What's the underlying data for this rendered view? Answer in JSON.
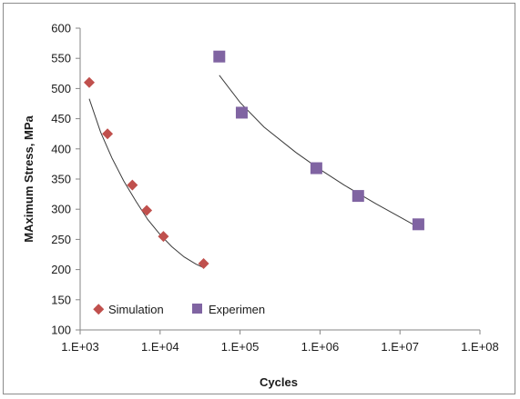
{
  "chart_data": {
    "type": "scatter",
    "xlabel": "Cycles",
    "ylabel": "MAximum Stress, MPa",
    "x_scale": "log",
    "xlim": [
      1000,
      100000000
    ],
    "ylim": [
      100,
      600
    ],
    "x_ticks": [
      1000,
      10000,
      100000,
      1000000,
      10000000,
      100000000
    ],
    "x_tick_labels": [
      "1.E+03",
      "1.E+04",
      "1.E+05",
      "1.E+06",
      "1.E+07",
      "1.E+08"
    ],
    "y_ticks": [
      100,
      150,
      200,
      250,
      300,
      350,
      400,
      450,
      500,
      550,
      600
    ],
    "y_tick_labels": [
      "100",
      "150",
      "200",
      "250",
      "300",
      "350",
      "400",
      "450",
      "500",
      "550",
      "600"
    ],
    "grid": false,
    "legend_position": "bottom-left",
    "series": [
      {
        "name": "Simulation",
        "marker": "diamond",
        "color": "#c0504d",
        "x": [
          1300,
          2200,
          4500,
          6800,
          11000,
          35000
        ],
        "y": [
          510,
          425,
          340,
          298,
          255,
          210
        ],
        "trendline": {
          "color": "#3a3a3a",
          "x": [
            1300,
            1800,
            2500,
            3500,
            5000,
            7000,
            10000,
            14000,
            20000,
            28000,
            35000
          ],
          "y": [
            483,
            428,
            385,
            347,
            313,
            283,
            258,
            238,
            221,
            209,
            203
          ]
        }
      },
      {
        "name": "Experimen",
        "marker": "square",
        "color": "#8064a2",
        "x": [
          55000,
          105000,
          900000,
          3000000,
          17000000
        ],
        "y": [
          553,
          460,
          368,
          322,
          275
        ],
        "trendline": {
          "color": "#3a3a3a",
          "x": [
            55000,
            100000,
            200000,
            500000,
            1000000,
            2000000,
            5000000,
            10000000,
            17000000
          ],
          "y": [
            522,
            477,
            436,
            394,
            366,
            340,
            309,
            287,
            270
          ]
        }
      }
    ]
  }
}
